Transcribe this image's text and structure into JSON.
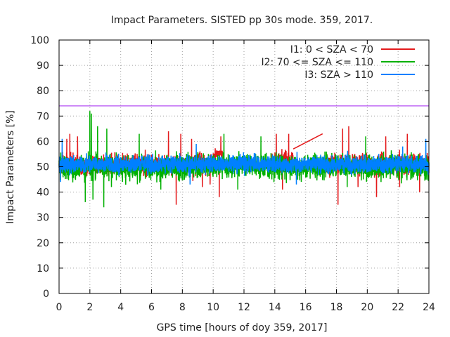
{
  "chart_data": {
    "type": "line",
    "title": "Impact Parameters. SISTED pp 30s mode. 359, 2017.",
    "xlabel": "GPS time [hours of doy 359, 2017]",
    "ylabel": "Impact Parameters [%]",
    "xlim": [
      0,
      24
    ],
    "ylim": [
      0,
      100
    ],
    "x_ticks": [
      0,
      2,
      4,
      6,
      8,
      10,
      12,
      14,
      16,
      18,
      20,
      22,
      24
    ],
    "y_ticks": [
      0,
      10,
      20,
      30,
      40,
      50,
      60,
      70,
      80,
      90,
      100
    ],
    "grid": true,
    "legend_position": "top-right",
    "reference_line": {
      "y": 74,
      "color": "#a020f0"
    },
    "series": [
      {
        "name": "I1: 0 < SZA < 70",
        "color": "#e41a1c",
        "segments": [
          {
            "x_start": 0.0,
            "x_end": 9.9,
            "center": 51,
            "spread": 6,
            "spikes": [
              [
                0.5,
                61
              ],
              [
                0.7,
                63
              ],
              [
                1.2,
                62
              ],
              [
                7.1,
                64
              ],
              [
                7.6,
                35
              ],
              [
                7.9,
                63
              ],
              [
                8.6,
                61
              ],
              [
                9.3,
                42
              ],
              [
                9.8,
                43
              ]
            ]
          },
          {
            "x_start": 10.0,
            "x_end": 10.6,
            "center": 55,
            "spread": 3,
            "spikes": [
              [
                10.4,
                38
              ],
              [
                10.5,
                62
              ]
            ]
          },
          {
            "x_start": 13.8,
            "x_end": 15.2,
            "center": 52,
            "spread": 5,
            "spikes": [
              [
                14.1,
                63
              ],
              [
                14.5,
                41
              ],
              [
                14.9,
                63
              ]
            ]
          },
          {
            "x_start": 15.2,
            "x_end": 17.1,
            "trend": [
              [
                15.2,
                57
              ],
              [
                17.1,
                63
              ]
            ]
          },
          {
            "x_start": 17.2,
            "x_end": 24.0,
            "center": 51,
            "spread": 6,
            "spikes": [
              [
                18.1,
                35
              ],
              [
                18.4,
                65
              ],
              [
                18.8,
                66
              ],
              [
                19.4,
                42
              ],
              [
                20.6,
                38
              ],
              [
                21.2,
                62
              ],
              [
                22.1,
                42
              ],
              [
                22.6,
                63
              ],
              [
                23.4,
                40
              ]
            ]
          }
        ]
      },
      {
        "name": "I2: 70 <= SZA <= 110",
        "color": "#00b000",
        "segments": [
          {
            "x_start": 0.0,
            "x_end": 24.0,
            "center": 50,
            "spread": 7,
            "spikes": [
              [
                1.7,
                36
              ],
              [
                2.0,
                72
              ],
              [
                2.1,
                71
              ],
              [
                2.2,
                37
              ],
              [
                2.5,
                66
              ],
              [
                2.9,
                34
              ],
              [
                3.1,
                65
              ],
              [
                3.4,
                42
              ],
              [
                5.2,
                63
              ],
              [
                6.6,
                41
              ],
              [
                10.7,
                63
              ],
              [
                11.6,
                41
              ],
              [
                13.1,
                62
              ],
              [
                18.7,
                42
              ],
              [
                19.9,
                62
              ]
            ]
          }
        ]
      },
      {
        "name": "I3: SZA > 110",
        "color": "#0080ff",
        "segments": [
          {
            "x_start": 0.0,
            "x_end": 24.0,
            "center": 51,
            "spread": 5,
            "spikes": [
              [
                0.1,
                44
              ],
              [
                0.2,
                61
              ],
              [
                8.5,
                43
              ],
              [
                8.9,
                59
              ],
              [
                15.4,
                43
              ],
              [
                22.3,
                58
              ],
              [
                23.8,
                61
              ]
            ]
          }
        ]
      }
    ]
  }
}
